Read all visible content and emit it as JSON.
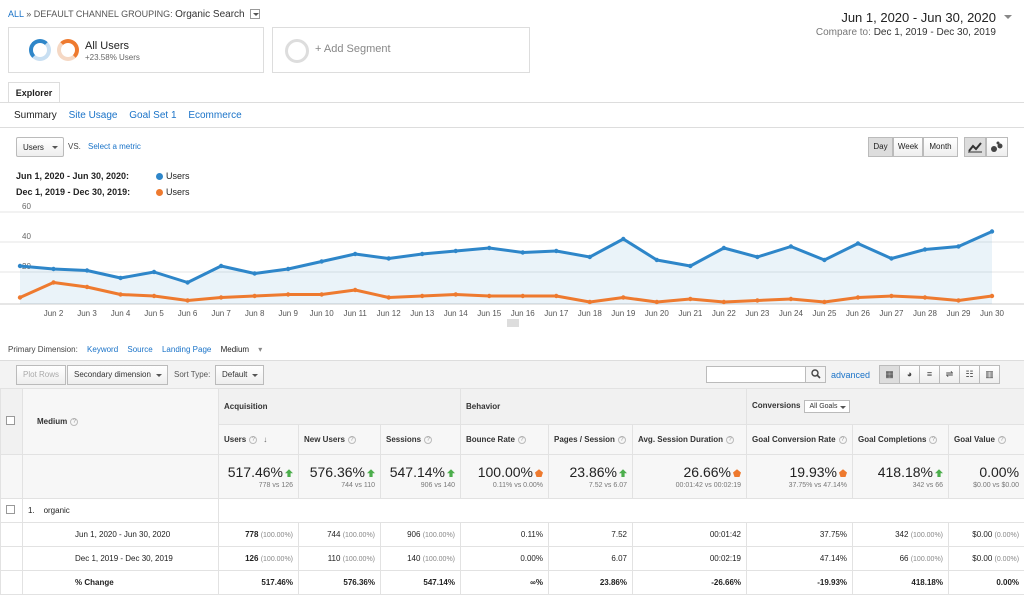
{
  "breadcrumb": {
    "all": "ALL",
    "sep": "»",
    "dimension": "DEFAULT CHANNEL GROUPING:",
    "value": "Organic Search"
  },
  "segments": {
    "seg1_title": "All Users",
    "seg1_sub": "+23.58% Users",
    "add_label": "+ Add Segment"
  },
  "daterange": {
    "primary": "Jun 1, 2020 - Jun 30, 2020",
    "compare_label": "Compare to:",
    "compare": "Dec 1, 2019 - Dec 30, 2019"
  },
  "tabs": {
    "explorer": "Explorer",
    "sub": [
      "Summary",
      "Site Usage",
      "Goal Set 1",
      "Ecommerce"
    ]
  },
  "chart_controls": {
    "metric": "Users",
    "vs": "VS.",
    "select_metric": "Select a metric",
    "day": "Day",
    "week": "Week",
    "month": "Month"
  },
  "legend": [
    {
      "date": "Jun 1, 2020 - Jun 30, 2020:",
      "series": "Users",
      "color": "#2e86c9"
    },
    {
      "date": "Dec 1, 2019 - Dec 30, 2019:",
      "series": "Users",
      "color": "#ee7a2f"
    }
  ],
  "chart_data": {
    "type": "line",
    "categories": [
      "",
      "Jun 2",
      "Jun 3",
      "Jun 4",
      "Jun 5",
      "Jun 6",
      "Jun 7",
      "Jun 8",
      "Jun 9",
      "Jun 10",
      "Jun 11",
      "Jun 12",
      "Jun 13",
      "Jun 14",
      "Jun 15",
      "Jun 16",
      "Jun 17",
      "Jun 18",
      "Jun 19",
      "Jun 20",
      "Jun 21",
      "Jun 22",
      "Jun 23",
      "Jun 24",
      "Jun 25",
      "Jun 26",
      "Jun 27",
      "Jun 28",
      "Jun 29",
      "Jun 30"
    ],
    "yticks": [
      20,
      40,
      60
    ],
    "ylim": [
      0,
      60
    ],
    "series": [
      {
        "name": "Users",
        "color": "#2e86c9",
        "area": true,
        "values": [
          24,
          22,
          21,
          16,
          20,
          13,
          24,
          19,
          22,
          27,
          32,
          29,
          32,
          34,
          36,
          33,
          34,
          30,
          42,
          28,
          24,
          36,
          30,
          37,
          28,
          39,
          29,
          35,
          37,
          47
        ]
      },
      {
        "name": "Users",
        "color": "#ee7a2f",
        "area": false,
        "values": [
          3,
          13,
          10,
          5,
          4,
          1,
          3,
          4,
          5,
          5,
          8,
          3,
          4,
          5,
          4,
          4,
          4,
          0,
          3,
          0,
          2,
          0,
          1,
          2,
          0,
          3,
          4,
          3,
          1,
          4
        ]
      }
    ]
  },
  "primary_dimension": {
    "label": "Primary Dimension:",
    "items": [
      "Keyword",
      "Source",
      "Landing Page",
      "Medium"
    ]
  },
  "toolbar": {
    "plot_rows": "Plot Rows",
    "secondary": "Secondary dimension",
    "sort_type_label": "Sort Type:",
    "sort_type": "Default",
    "advanced": "advanced"
  },
  "table": {
    "groups": {
      "acquisition": "Acquisition",
      "behavior": "Behavior",
      "conversions": "Conversions",
      "goals_select": "All Goals"
    },
    "columns": {
      "medium": "Medium",
      "users": "Users",
      "new_users": "New Users",
      "sessions": "Sessions",
      "bounce": "Bounce Rate",
      "pps": "Pages / Session",
      "asd": "Avg. Session Duration",
      "gcr": "Goal Conversion Rate",
      "gc": "Goal Completions",
      "gv": "Goal Value"
    },
    "totals": {
      "users": "517.46%",
      "users_sub": "778 vs 126",
      "new_users": "576.36%",
      "new_users_sub": "744 vs 110",
      "sessions": "547.14%",
      "sessions_sub": "906 vs 140",
      "bounce": "100.00%",
      "bounce_sub": "0.11% vs 0.00%",
      "pps": "23.86%",
      "pps_sub": "7.52 vs 6.07",
      "asd": "26.66%",
      "asd_sub": "00:01:42 vs 00:02:19",
      "gcr": "19.93%",
      "gcr_sub": "37.75% vs 47.14%",
      "gc": "418.18%",
      "gc_sub": "342 vs 66",
      "gv": "0.00%",
      "gv_sub": "$0.00 vs $0.00"
    },
    "group_row": {
      "index": "1.",
      "label": "organic"
    },
    "rows": [
      {
        "label": "Jun 1, 2020 - Jun 30, 2020",
        "users": "778",
        "users_pct": "(100.00%)",
        "new_users": "744",
        "new_users_pct": "(100.00%)",
        "sessions": "906",
        "sessions_pct": "(100.00%)",
        "bounce": "0.11%",
        "pps": "7.52",
        "asd": "00:01:42",
        "gcr": "37.75%",
        "gc": "342",
        "gc_pct": "(100.00%)",
        "gv": "$0.00",
        "gv_pct": "(0.00%)"
      },
      {
        "label": "Dec 1, 2019 - Dec 30, 2019",
        "users": "126",
        "users_pct": "(100.00%)",
        "new_users": "110",
        "new_users_pct": "(100.00%)",
        "sessions": "140",
        "sessions_pct": "(100.00%)",
        "bounce": "0.00%",
        "pps": "6.07",
        "asd": "00:02:19",
        "gcr": "47.14%",
        "gc": "66",
        "gc_pct": "(100.00%)",
        "gv": "$0.00",
        "gv_pct": "(0.00%)"
      }
    ],
    "change": {
      "label": "% Change",
      "users": "517.46%",
      "new_users": "576.36%",
      "sessions": "547.14%",
      "bounce": "∞%",
      "pps": "23.86%",
      "asd": "-26.66%",
      "gcr": "-19.93%",
      "gc": "418.18%",
      "gv": "0.00%"
    }
  }
}
